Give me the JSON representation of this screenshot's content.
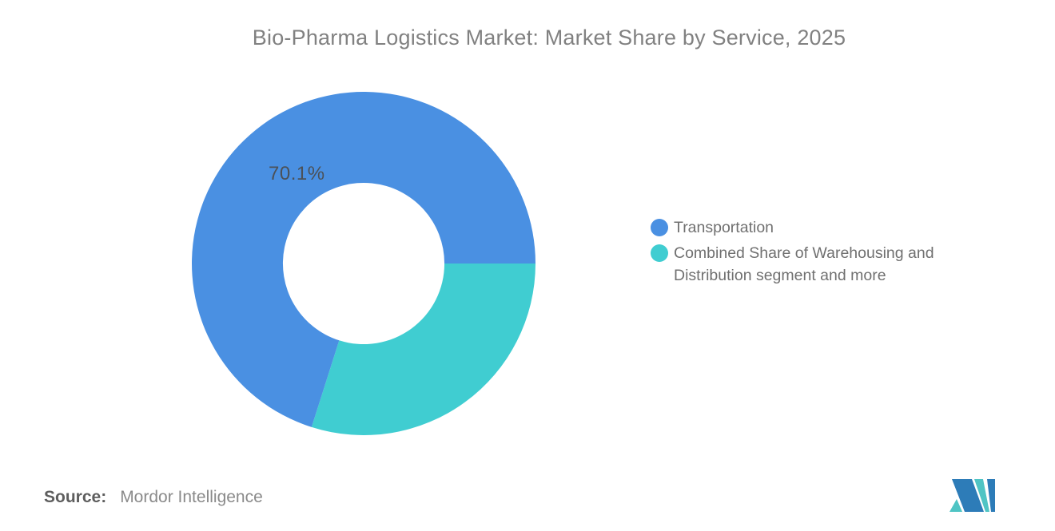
{
  "title": "Bio-Pharma Logistics Market: Market Share by Service, 2025",
  "chart_data": {
    "type": "pie",
    "subtype": "donut",
    "title": "Bio-Pharma Logistics Market: Market Share by Service, 2025",
    "slices": [
      {
        "label": "Transportation",
        "value": 70.1,
        "color": "#4a90e2",
        "data_label": "70.1%"
      },
      {
        "label": "Combined Share of Warehousing and Distribution segment and more",
        "value": 29.9,
        "color": "#40cdd1",
        "data_label": ""
      }
    ],
    "start_angle_deg": 90,
    "inner_radius_ratio": 0.47,
    "legend_position": "right",
    "grid": false
  },
  "source": {
    "prefix": "Source:",
    "text": "Mordor Intelligence"
  },
  "logo": {
    "name": "mordor-intelligence-logo",
    "blue": "#2d7cb8",
    "teal": "#4fc4c4"
  }
}
